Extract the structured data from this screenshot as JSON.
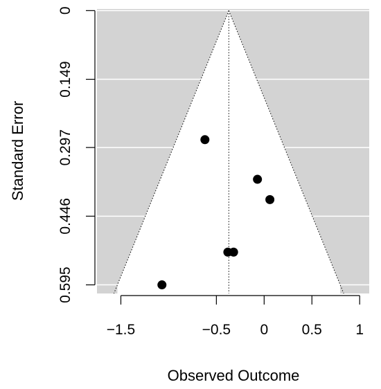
{
  "chart_data": {
    "type": "scatter",
    "subtype": "funnel-plot",
    "title": "",
    "xlabel": "Observed Outcome",
    "ylabel": "Standard Error",
    "xlim": [
      -1.75,
      1.1
    ],
    "ylim": [
      0.6137,
      -0.0035
    ],
    "y_reversed": true,
    "x_ticks": [
      -1.5,
      -0.5,
      0,
      0.5,
      1
    ],
    "x_tick_labels": [
      "−1.5",
      "−0.5",
      "0",
      "0.5",
      "1"
    ],
    "y_ticks": [
      0,
      0.149,
      0.297,
      0.446,
      0.595
    ],
    "y_tick_labels": [
      "0",
      "0.149",
      "0.297",
      "0.446",
      "0.595"
    ],
    "grid": "horizontal, white",
    "center_estimate": -0.37,
    "funnel_multiplier": 1.96,
    "funnel_max_se": 0.595,
    "colors": {
      "background_region": "#d3d3d3",
      "funnel_region": "#ffffff",
      "points": "#000000",
      "grid": "#ffffff"
    },
    "points": [
      {
        "x": -0.62,
        "y": 0.28
      },
      {
        "x": -0.07,
        "y": 0.366
      },
      {
        "x": 0.06,
        "y": 0.41
      },
      {
        "x": -0.38,
        "y": 0.524
      },
      {
        "x": -0.32,
        "y": 0.524
      },
      {
        "x": -1.07,
        "y": 0.595
      }
    ]
  }
}
